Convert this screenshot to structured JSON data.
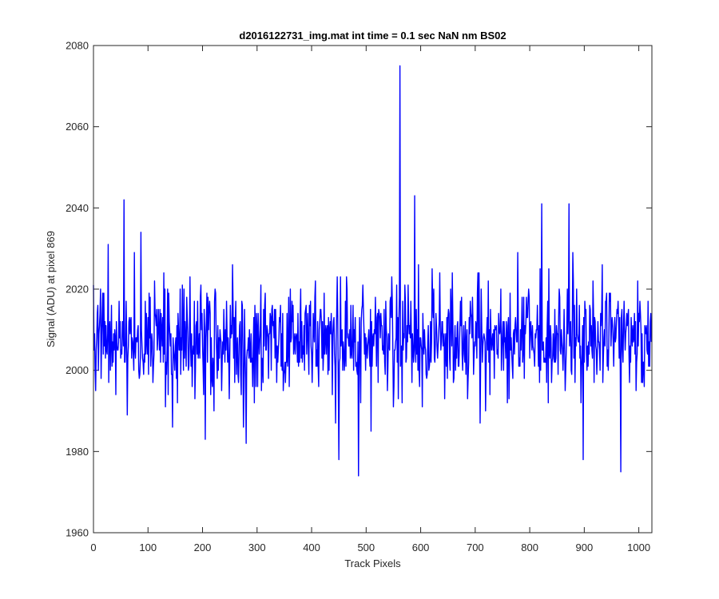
{
  "chart_data": {
    "type": "line",
    "title": "d2016122731_img.mat int time = 0.1 sec  NaN nm BS02",
    "xlabel": "Track Pixels",
    "ylabel": "Signal (ADU) at pixel 869",
    "xlim": [
      0,
      1024
    ],
    "ylim": [
      1960,
      2080
    ],
    "xticks": [
      0,
      100,
      200,
      300,
      400,
      500,
      600,
      700,
      800,
      900,
      1000
    ],
    "yticks": [
      1960,
      1980,
      2000,
      2020,
      2040,
      2060,
      2080
    ],
    "grid": false,
    "legend": "none",
    "series_color": "#0000ff",
    "series": [
      {
        "noise": {
          "count": 1024,
          "center": 2008,
          "spread": 7,
          "seed": 2016
        },
        "notable_points": [
          {
            "x": 56,
            "y": 2042
          },
          {
            "x": 87,
            "y": 2034
          },
          {
            "x": 27,
            "y": 2031
          },
          {
            "x": 145,
            "y": 1986
          },
          {
            "x": 205,
            "y": 1983
          },
          {
            "x": 280,
            "y": 1982
          },
          {
            "x": 450,
            "y": 1978
          },
          {
            "x": 486,
            "y": 1974
          },
          {
            "x": 562,
            "y": 2075
          },
          {
            "x": 589,
            "y": 2043
          },
          {
            "x": 822,
            "y": 2041
          },
          {
            "x": 872,
            "y": 2041
          },
          {
            "x": 898,
            "y": 1978
          },
          {
            "x": 967,
            "y": 1975
          }
        ]
      }
    ]
  }
}
